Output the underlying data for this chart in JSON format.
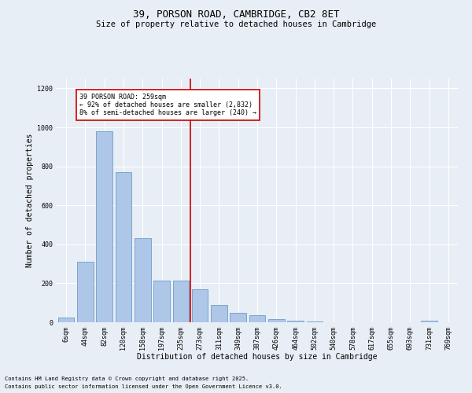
{
  "title": "39, PORSON ROAD, CAMBRIDGE, CB2 8ET",
  "subtitle": "Size of property relative to detached houses in Cambridge",
  "xlabel": "Distribution of detached houses by size in Cambridge",
  "ylabel": "Number of detached properties",
  "categories": [
    "6sqm",
    "44sqm",
    "82sqm",
    "120sqm",
    "158sqm",
    "197sqm",
    "235sqm",
    "273sqm",
    "311sqm",
    "349sqm",
    "387sqm",
    "426sqm",
    "464sqm",
    "502sqm",
    "540sqm",
    "578sqm",
    "617sqm",
    "655sqm",
    "693sqm",
    "731sqm",
    "769sqm"
  ],
  "values": [
    25,
    310,
    980,
    770,
    430,
    215,
    215,
    170,
    90,
    50,
    35,
    15,
    10,
    5,
    2,
    0,
    0,
    0,
    0,
    10,
    0
  ],
  "bar_color": "#aec6e8",
  "bar_edge_color": "#5a8fc2",
  "vline_pos": 6.5,
  "vline_color": "#cc0000",
  "annotation_text": "39 PORSON ROAD: 259sqm\n← 92% of detached houses are smaller (2,832)\n8% of semi-detached houses are larger (240) →",
  "annotation_box_color": "#ffffff",
  "annotation_box_edge": "#cc0000",
  "bg_color": "#e8eef5",
  "plot_bg_color": "#e8eef5",
  "grid_color": "#ffffff",
  "footer_line1": "Contains HM Land Registry data © Crown copyright and database right 2025.",
  "footer_line2": "Contains public sector information licensed under the Open Government Licence v3.0.",
  "ylim": [
    0,
    1250
  ],
  "yticks": [
    0,
    200,
    400,
    600,
    800,
    1000,
    1200
  ],
  "title_fontsize": 9,
  "subtitle_fontsize": 7.5,
  "tick_fontsize": 6,
  "ylabel_fontsize": 7,
  "xlabel_fontsize": 7,
  "ann_fontsize": 6,
  "footer_fontsize": 5
}
